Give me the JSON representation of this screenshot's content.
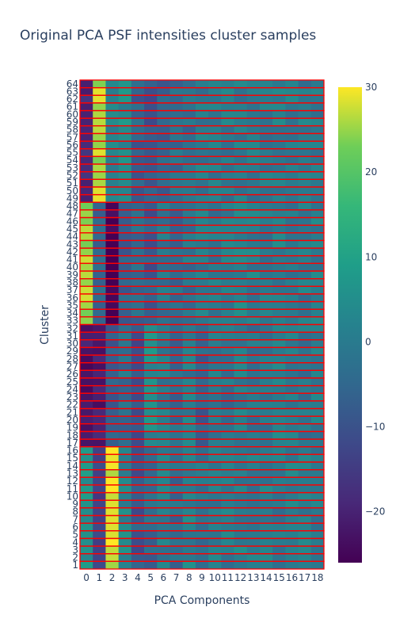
{
  "chart_data": {
    "type": "heatmap",
    "title": "Original PCA PSF intensities cluster samples",
    "xlabel": "PCA Components",
    "ylabel": "Cluster",
    "x": [
      "0",
      "1",
      "2",
      "3",
      "4",
      "5",
      "6",
      "7",
      "8",
      "9",
      "10",
      "11",
      "12",
      "13",
      "14",
      "15",
      "16",
      "17",
      "18"
    ],
    "y": [
      "1",
      "2",
      "3",
      "4",
      "5",
      "6",
      "7",
      "8",
      "9",
      "10",
      "11",
      "12",
      "13",
      "14",
      "15",
      "16",
      "17",
      "18",
      "19",
      "20",
      "21",
      "22",
      "23",
      "24",
      "25",
      "26",
      "27",
      "28",
      "29",
      "30",
      "31",
      "32",
      "33",
      "34",
      "35",
      "36",
      "37",
      "38",
      "39",
      "40",
      "41",
      "42",
      "43",
      "44",
      "45",
      "46",
      "47",
      "48",
      "49",
      "50",
      "51",
      "52",
      "53",
      "54",
      "55",
      "56",
      "57",
      "58",
      "59",
      "60",
      "61",
      "62",
      "63",
      "64"
    ],
    "zrange": [
      -26,
      30
    ],
    "colorscale": "Viridis",
    "colorbar_ticks": [
      30,
      20,
      10,
      0,
      -10,
      -20
    ],
    "cluster_groups": [
      {
        "clusters": [
          1,
          16
        ],
        "mean": [
          6,
          -13,
          28,
          3,
          -8,
          -5,
          1,
          -4,
          2,
          -2,
          0,
          0,
          1,
          0,
          1,
          0,
          1,
          0,
          0
        ]
      },
      {
        "clusters": [
          17,
          32
        ],
        "mean": [
          -22,
          -21,
          -7,
          -3,
          -11,
          4,
          0,
          -4,
          0,
          -6,
          -1,
          -2,
          1,
          -1,
          0,
          1,
          0,
          -1,
          0
        ]
      },
      {
        "clusters": [
          33,
          48
        ],
        "mean": [
          25,
          -5,
          -26,
          -6,
          -4,
          -8,
          -2,
          -4,
          -2,
          0,
          -1,
          0,
          2,
          1,
          0,
          1,
          0,
          0,
          1
        ]
      },
      {
        "clusters": [
          49,
          64
        ],
        "mean": [
          -18,
          26,
          2,
          4,
          -6,
          -8,
          -6,
          -3,
          -3,
          0,
          0,
          0,
          0,
          0,
          0,
          1,
          0,
          0,
          0
        ]
      }
    ],
    "highlight_color": "#ff0000"
  }
}
